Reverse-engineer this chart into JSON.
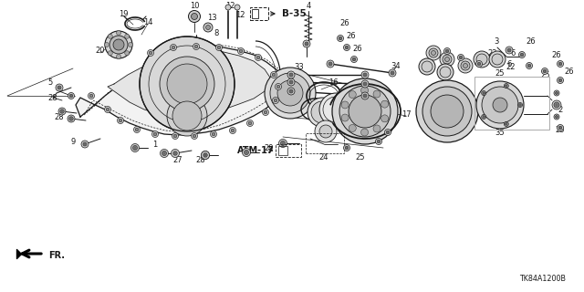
{
  "bg_color": "#ffffff",
  "diagram_code": "TK84A1200B",
  "atm_label": "ATM-17",
  "b35_label": "B-35",
  "fr_label": "FR.",
  "line_color": "#1a1a1a",
  "text_color": "#1a1a1a",
  "lw_main": 0.9,
  "lw_thin": 0.55,
  "lw_leader": 0.5
}
